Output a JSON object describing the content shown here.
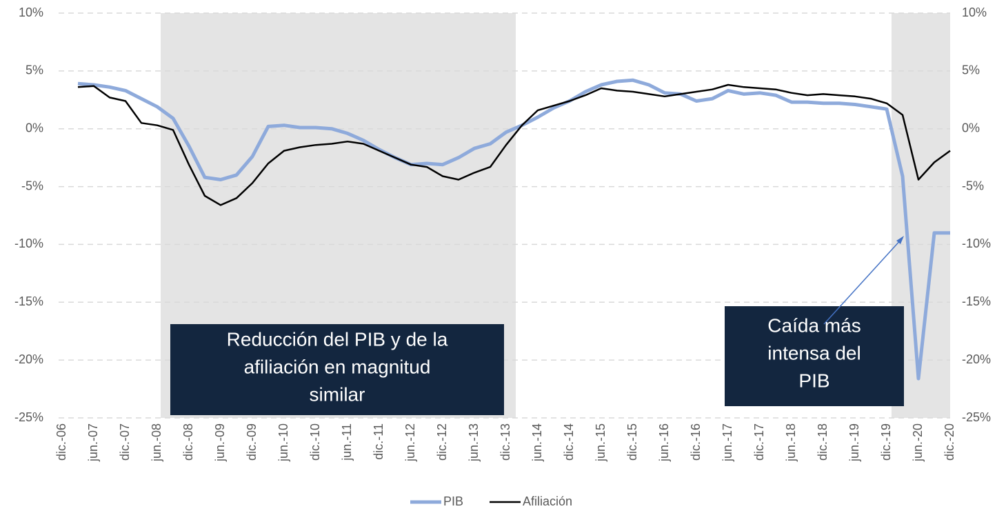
{
  "chart_data": {
    "type": "line",
    "categories": [
      "dic.-06",
      null,
      "jun.-07",
      null,
      "dic.-07",
      null,
      "jun.-08",
      null,
      "dic.-08",
      null,
      "jun.-09",
      null,
      "dic.-09",
      null,
      "jun.-10",
      null,
      "dic.-10",
      null,
      "jun.-11",
      null,
      "dic.-11",
      null,
      "jun.-12",
      null,
      "dic.-12",
      null,
      "jun.-13",
      null,
      "dic.-13",
      null,
      "jun.-14",
      null,
      "dic.-14",
      null,
      "jun.-15",
      null,
      "dic.-15",
      null,
      "jun.-16",
      null,
      "dic.-16",
      null,
      "jun.-17",
      null,
      "dic.-17",
      null,
      "jun.-18",
      null,
      "dic.-18",
      null,
      "jun.-19",
      null,
      "dic.-19",
      null,
      "jun.-20",
      null,
      "dic.-20"
    ],
    "series": [
      {
        "name": "PIB",
        "color": "#8eaadb",
        "values": [
          null,
          3.9,
          3.8,
          3.6,
          3.3,
          2.6,
          1.9,
          0.9,
          -1.5,
          -4.2,
          -4.4,
          -4.0,
          -2.4,
          0.2,
          0.3,
          0.1,
          0.1,
          0.0,
          -0.4,
          -1.0,
          -1.8,
          -2.5,
          -3.1,
          -3.0,
          -3.1,
          -2.5,
          -1.7,
          -1.3,
          -0.3,
          0.3,
          1.0,
          1.8,
          2.4,
          3.2,
          3.8,
          4.1,
          4.2,
          3.8,
          3.1,
          3.0,
          2.4,
          2.6,
          3.3,
          3.0,
          3.1,
          2.9,
          2.3,
          2.3,
          2.2,
          2.2,
          2.1,
          1.9,
          1.7,
          -4.1,
          -21.6,
          -9.0,
          -9.0
        ]
      },
      {
        "name": "Afiliación",
        "color": "#000000",
        "values": [
          null,
          3.6,
          3.7,
          2.7,
          2.4,
          0.5,
          0.3,
          -0.1,
          -3.1,
          -5.8,
          -6.6,
          -6.0,
          -4.7,
          -3.0,
          -1.9,
          -1.6,
          -1.4,
          -1.3,
          -1.1,
          -1.3,
          -1.9,
          -2.5,
          -3.1,
          -3.3,
          -4.1,
          -4.4,
          -3.8,
          -3.3,
          -1.4,
          0.3,
          1.6,
          2.0,
          2.4,
          2.9,
          3.5,
          3.3,
          3.2,
          3.0,
          2.8,
          3.0,
          3.2,
          3.4,
          3.8,
          3.6,
          3.5,
          3.4,
          3.1,
          2.9,
          3.0,
          2.9,
          2.8,
          2.6,
          2.2,
          1.2,
          -4.4,
          -2.9,
          -1.9
        ]
      }
    ],
    "ylim": [
      -25,
      10
    ],
    "yticks": [
      {
        "value": -25,
        "label": "-25%"
      },
      {
        "value": -20,
        "label": "-20%"
      },
      {
        "value": -15,
        "label": "-15%"
      },
      {
        "value": -10,
        "label": "-10%"
      },
      {
        "value": -5,
        "label": "-5%"
      },
      {
        "value": 0,
        "label": "0%"
      },
      {
        "value": 5,
        "label": "5%"
      },
      {
        "value": 10,
        "label": "10%"
      }
    ],
    "y2lim": [
      -25,
      10
    ],
    "y2ticks": [
      {
        "value": -25,
        "label": "-25%"
      },
      {
        "value": -20,
        "label": "-20%"
      },
      {
        "value": -15,
        "label": "-15%"
      },
      {
        "value": -10,
        "label": "-10%"
      },
      {
        "value": -5,
        "label": "-5%"
      },
      {
        "value": 0,
        "label": "0%"
      },
      {
        "value": 5,
        "label": "5%"
      },
      {
        "value": 10,
        "label": "10%"
      }
    ],
    "grid": true,
    "legend": "bottom",
    "annotations": [
      {
        "lines": [
          "Reducción del PIB y de la",
          "afiliación en magnitud",
          "similar"
        ]
      },
      {
        "lines": [
          "Caída más",
          "intensa del",
          "PIB"
        ]
      }
    ]
  }
}
